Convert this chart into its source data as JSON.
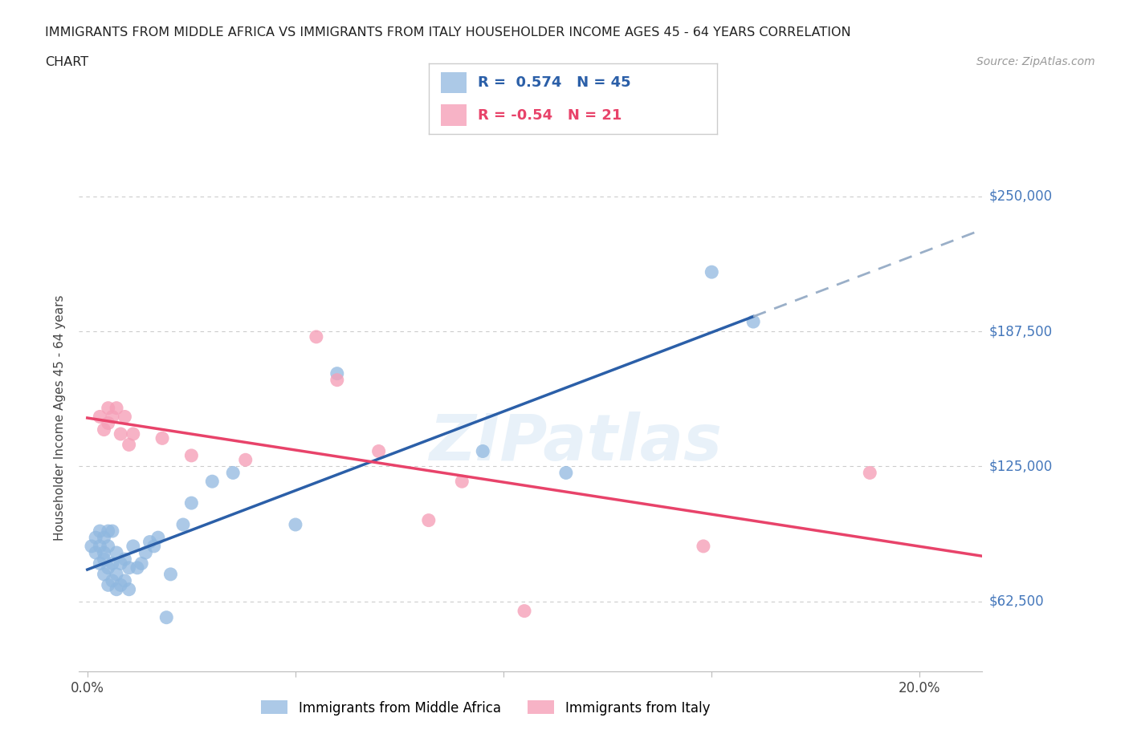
{
  "title_line1": "IMMIGRANTS FROM MIDDLE AFRICA VS IMMIGRANTS FROM ITALY HOUSEHOLDER INCOME AGES 45 - 64 YEARS CORRELATION",
  "title_line2": "CHART",
  "source": "Source: ZipAtlas.com",
  "ylabel": "Householder Income Ages 45 - 64 years",
  "watermark": "ZIPatlas",
  "blue_R": 0.574,
  "blue_N": 45,
  "pink_R": -0.54,
  "pink_N": 21,
  "blue_label": "Immigrants from Middle Africa",
  "pink_label": "Immigrants from Italy",
  "xlim_low": -0.002,
  "xlim_high": 0.215,
  "ylim_low": 30000,
  "ylim_high": 265000,
  "yticks": [
    62500,
    125000,
    187500,
    250000
  ],
  "ytick_labels": [
    "$62,500",
    "$125,000",
    "$187,500",
    "$250,000"
  ],
  "xtick_vals": [
    0.0,
    0.05,
    0.1,
    0.15,
    0.2
  ],
  "xtick_labels": [
    "0.0%",
    "",
    "",
    "",
    "20.0%"
  ],
  "blue_dot_color": "#90B8E0",
  "pink_dot_color": "#F5A0B8",
  "blue_line_color": "#2B5FA8",
  "pink_line_color": "#E8436A",
  "blue_dash_color": "#9AAFC8",
  "grid_color": "#CCCCCC",
  "ytick_label_color": "#4477BB",
  "blue_scatter_x": [
    0.001,
    0.002,
    0.002,
    0.003,
    0.003,
    0.003,
    0.004,
    0.004,
    0.004,
    0.004,
    0.005,
    0.005,
    0.005,
    0.005,
    0.006,
    0.006,
    0.006,
    0.007,
    0.007,
    0.007,
    0.008,
    0.008,
    0.009,
    0.009,
    0.01,
    0.01,
    0.011,
    0.012,
    0.013,
    0.014,
    0.015,
    0.016,
    0.017,
    0.019,
    0.02,
    0.023,
    0.025,
    0.03,
    0.035,
    0.05,
    0.06,
    0.095,
    0.115,
    0.15,
    0.16
  ],
  "blue_scatter_y": [
    88000,
    92000,
    85000,
    80000,
    95000,
    88000,
    75000,
    82000,
    92000,
    85000,
    70000,
    78000,
    88000,
    95000,
    72000,
    80000,
    95000,
    68000,
    75000,
    85000,
    70000,
    80000,
    72000,
    82000,
    68000,
    78000,
    88000,
    78000,
    80000,
    85000,
    90000,
    88000,
    92000,
    55000,
    75000,
    98000,
    108000,
    118000,
    122000,
    98000,
    168000,
    132000,
    122000,
    215000,
    192000
  ],
  "pink_scatter_x": [
    0.003,
    0.004,
    0.005,
    0.005,
    0.006,
    0.007,
    0.008,
    0.009,
    0.01,
    0.011,
    0.018,
    0.025,
    0.038,
    0.055,
    0.06,
    0.07,
    0.082,
    0.09,
    0.105,
    0.148,
    0.188
  ],
  "pink_scatter_y": [
    148000,
    142000,
    152000,
    145000,
    148000,
    152000,
    140000,
    148000,
    135000,
    140000,
    138000,
    130000,
    128000,
    185000,
    165000,
    132000,
    100000,
    118000,
    58000,
    88000,
    122000
  ],
  "blue_line_x0": 0.0,
  "blue_line_x_solid_end": 0.16,
  "blue_line_x_end": 0.215,
  "blue_line_y_at_0": 62000,
  "blue_line_slope": 950000,
  "pink_line_x0": 0.0,
  "pink_line_x_end": 0.215,
  "pink_line_y_at_0": 155000,
  "pink_line_slope": -530000
}
